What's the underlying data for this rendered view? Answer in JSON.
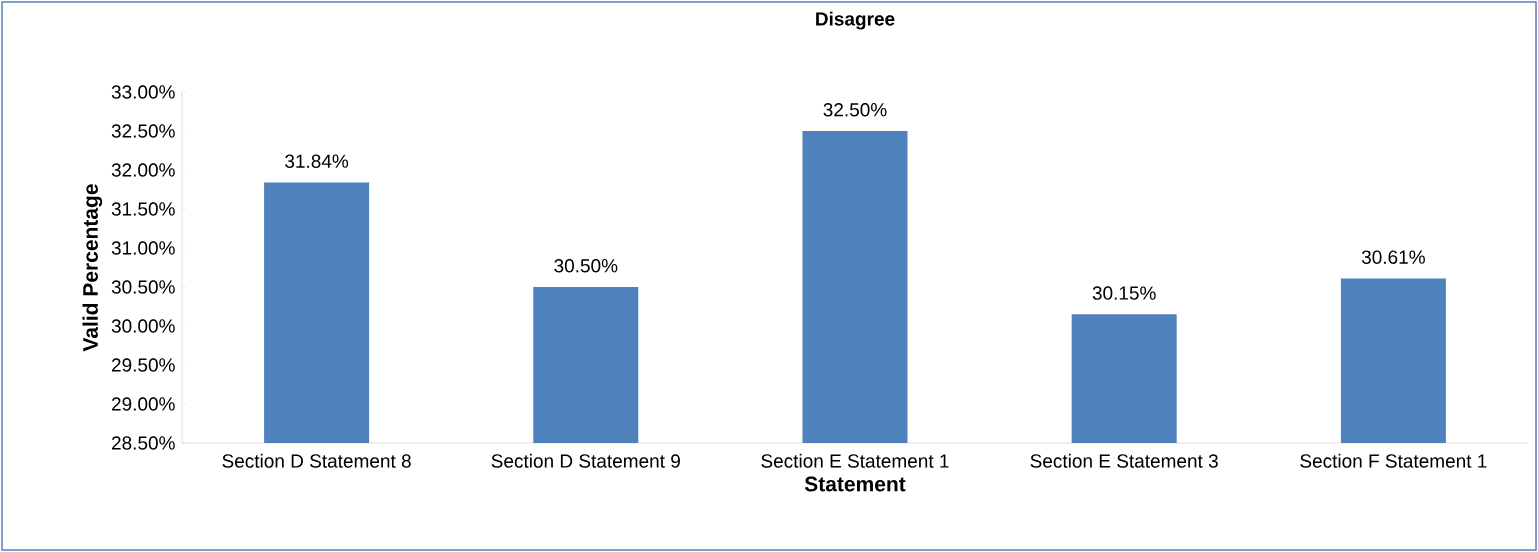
{
  "chart_data": {
    "type": "bar",
    "title": "Disagree",
    "xlabel": "Statement",
    "ylabel": "Valid Percentage",
    "categories": [
      "Section D Statement 8",
      "Section D Statement 9",
      "Section E Statement 1",
      "Section E Statement 3",
      "Section F Statement 1"
    ],
    "values": [
      31.84,
      30.5,
      32.5,
      30.15,
      30.61
    ],
    "value_labels": [
      "31.84%",
      "30.50%",
      "32.50%",
      "30.15%",
      "30.61%"
    ],
    "color": "#4f81bd",
    "ylim": [
      28.5,
      33
    ],
    "yticks": [
      {
        "value": 28.5,
        "label": "28.50%"
      },
      {
        "value": 29,
        "label": "29.00%"
      },
      {
        "value": 29.5,
        "label": "29.50%"
      },
      {
        "value": 30,
        "label": "30.00%"
      },
      {
        "value": 30.5,
        "label": "30.50%"
      },
      {
        "value": 31,
        "label": "31.00%"
      },
      {
        "value": 31.5,
        "label": "31.50%"
      },
      {
        "value": 32,
        "label": "32.00%"
      },
      {
        "value": 32.5,
        "label": "32.50%"
      },
      {
        "value": 33,
        "label": "33.00%"
      }
    ]
  }
}
